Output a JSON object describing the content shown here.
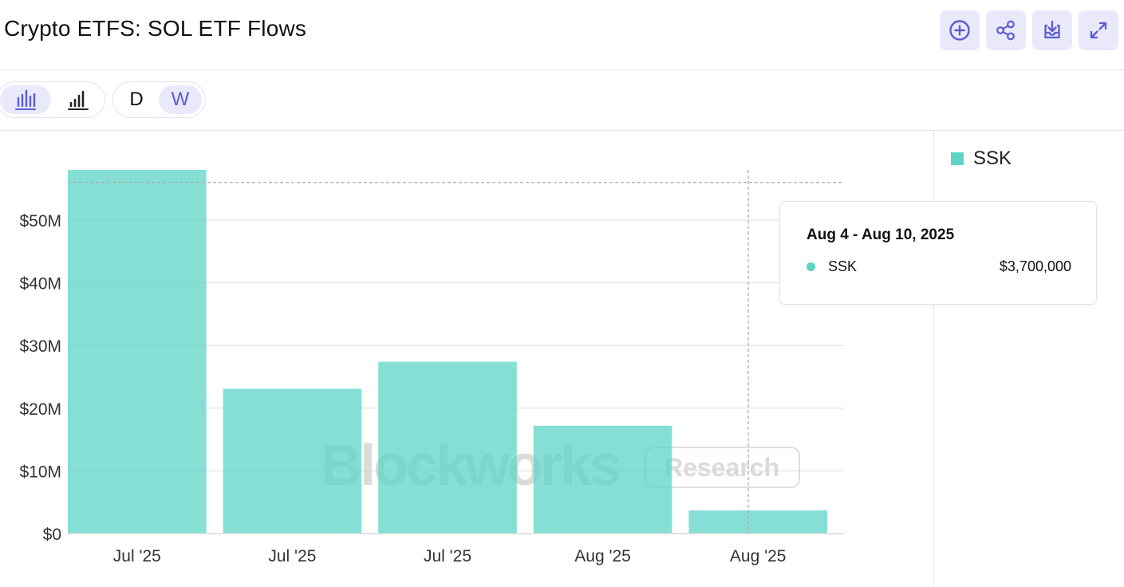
{
  "header": {
    "title": "Crypto ETFS: SOL ETF Flows"
  },
  "toolbar": {
    "chart_types": [
      "bar-chart",
      "bar-chart-stacked"
    ],
    "active_chart_type": "bar-chart",
    "periods": [
      "D",
      "W"
    ],
    "active_period": "W"
  },
  "actions": [
    "add-circle-icon",
    "share-icon",
    "download-icon",
    "expand-icon"
  ],
  "colors": {
    "accent": "#5b5bd6",
    "accent_bg": "#e9e9fb",
    "series": "#5dd4c6"
  },
  "watermark": {
    "brand": "Blockworks",
    "tag": "Research"
  },
  "legend": {
    "items": [
      {
        "label": "SSK",
        "color": "#5dd4c6"
      }
    ]
  },
  "tooltip": {
    "title": "Aug 4 - Aug 10, 2025",
    "series": "SSK",
    "value": "$3,700,000"
  },
  "chart_data": {
    "type": "bar",
    "categories": [
      "Jul '25",
      "Jul '25",
      "Jul '25",
      "Aug '25",
      "Aug '25"
    ],
    "series": [
      {
        "name": "SSK",
        "values": [
          58000000,
          23100000,
          27400000,
          17200000,
          3700000
        ]
      }
    ],
    "yticks": [
      "$0",
      "$10M",
      "$20M",
      "$30M",
      "$40M",
      "$50M"
    ],
    "ylim": [
      0,
      58000000
    ],
    "grid": true,
    "legend_position": "right",
    "crosshair_category_index": 4,
    "crosshair_value": 56000000
  }
}
